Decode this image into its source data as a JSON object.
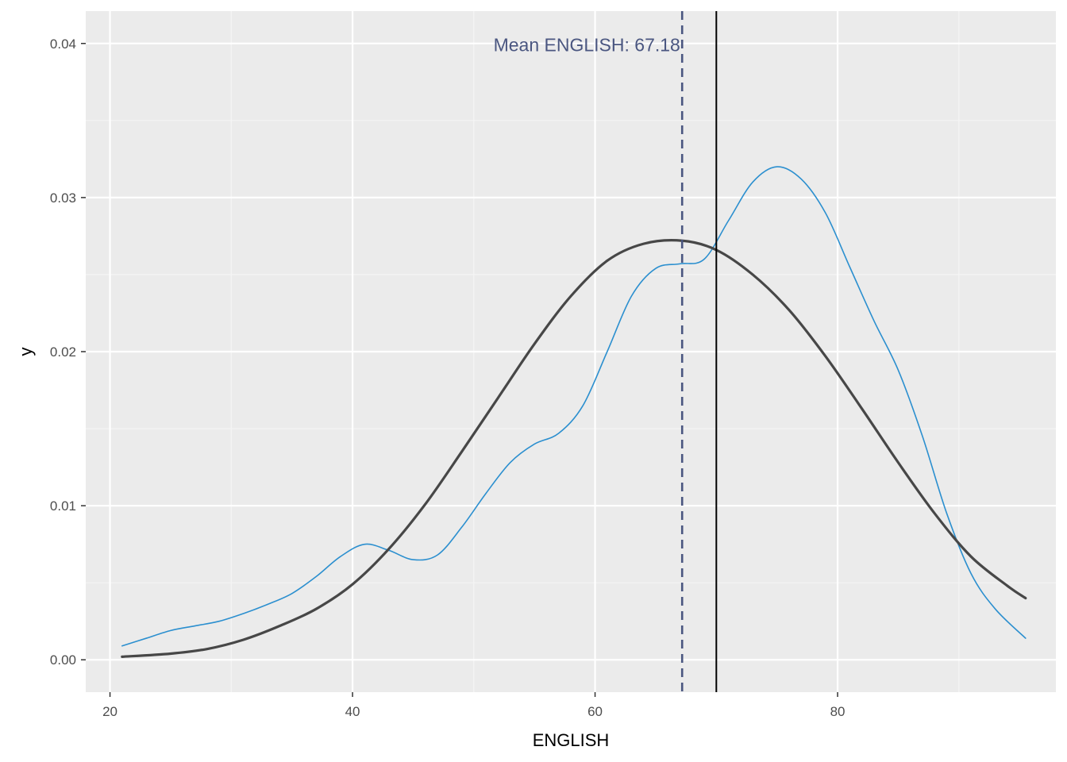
{
  "chart_data": {
    "type": "line",
    "xlabel": "ENGLISH",
    "ylabel": "y",
    "xlim": [
      18,
      98
    ],
    "ylim": [
      -0.0021,
      0.0421
    ],
    "x_ticks": [
      20,
      40,
      60,
      80
    ],
    "x_tick_labels": [
      "20",
      "40",
      "60",
      "80"
    ],
    "x_minor_ticks": [
      30,
      50,
      70,
      90
    ],
    "y_ticks": [
      0.0,
      0.01,
      0.02,
      0.03,
      0.04
    ],
    "y_tick_labels": [
      "0.00",
      "0.01",
      "0.02",
      "0.03",
      "0.04"
    ],
    "y_minor_ticks": [
      0.005,
      0.015,
      0.025,
      0.035
    ],
    "grid": true,
    "legend": "none",
    "annotation": {
      "text": "Mean ENGLISH: 67.18",
      "x": 67.18,
      "y": 0.0399,
      "color": "#4a5680"
    },
    "vlines": [
      {
        "x": 67.18,
        "style": "dashed",
        "color": "#4a5680"
      },
      {
        "x": 70.0,
        "style": "solid",
        "color": "#000000"
      }
    ],
    "series": [
      {
        "color": "#2b8fcf",
        "style": "thin",
        "x": [
          21,
          23,
          25,
          27,
          29,
          31,
          33,
          35,
          37,
          39,
          41,
          43,
          45,
          47,
          49,
          51,
          53,
          55,
          57,
          59,
          61,
          63,
          65,
          67,
          69,
          71,
          73,
          75,
          77,
          79,
          81,
          83,
          85,
          87,
          89,
          91,
          93,
          95.5
        ],
        "values": [
          0.0009,
          0.0014,
          0.0019,
          0.0022,
          0.0025,
          0.003,
          0.0036,
          0.0043,
          0.0054,
          0.0067,
          0.0075,
          0.0071,
          0.0065,
          0.0068,
          0.0086,
          0.0108,
          0.0128,
          0.014,
          0.0147,
          0.0165,
          0.02,
          0.0236,
          0.0254,
          0.0257,
          0.026,
          0.0285,
          0.031,
          0.032,
          0.0312,
          0.029,
          0.0255,
          0.022,
          0.0188,
          0.0145,
          0.0095,
          0.0056,
          0.0033,
          0.0014
        ]
      },
      {
        "color": "#474747",
        "style": "thick",
        "x": [
          21,
          25,
          28,
          31,
          34,
          37,
          40,
          43,
          46,
          49,
          52,
          55,
          58,
          61,
          64,
          67.18,
          70,
          73,
          76,
          79,
          82,
          85,
          88,
          91,
          94,
          95.5
        ],
        "values": [
          0.0002,
          0.0004,
          0.0007,
          0.0013,
          0.0022,
          0.0033,
          0.0049,
          0.0072,
          0.0101,
          0.0135,
          0.017,
          0.0205,
          0.0236,
          0.0259,
          0.027,
          0.0272,
          0.0266,
          0.025,
          0.0227,
          0.0197,
          0.0163,
          0.0128,
          0.0095,
          0.0067,
          0.0048,
          0.004
        ]
      }
    ]
  }
}
